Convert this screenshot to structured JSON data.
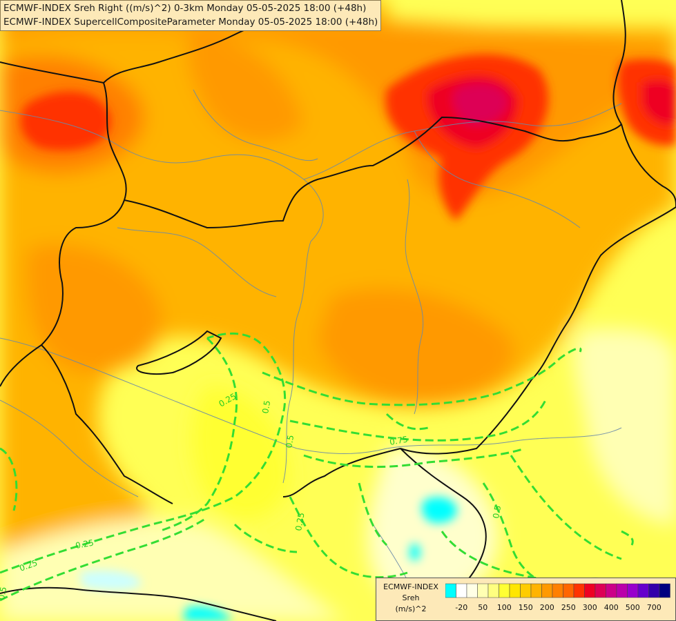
{
  "titles": {
    "line1": "ECMWF-INDEX Sreh Right ((m/s)^2) 0-3km Monday 05-05-2025 18:00 (+48h)",
    "line2": "ECMWF-INDEX SupercellCompositeParameter Monday 05-05-2025 18:00 (+48h)"
  },
  "legend": {
    "title": "ECMWF-INDEX",
    "variable": "Sreh",
    "unit": "(m/s)^2",
    "colors": [
      "#00ffff",
      "#ffffff",
      "#ffffe6",
      "#ffffb3",
      "#ffff80",
      "#ffff33",
      "#ffe600",
      "#ffcc00",
      "#ffb300",
      "#ff9900",
      "#ff8000",
      "#ff6600",
      "#ff3300",
      "#ee0022",
      "#dd0055",
      "#cc0088",
      "#bb00aa",
      "#9900cc",
      "#6600cc",
      "#3300aa",
      "#000080"
    ],
    "tick_labels": [
      "-20",
      "50",
      "100",
      "150",
      "200",
      "250",
      "300",
      "400",
      "500",
      "700"
    ]
  },
  "contours": {
    "color": "#33dd33",
    "labels": [
      "0.25",
      "0.5",
      "0.75",
      "0.5",
      "0.25",
      "0.25",
      "0.5",
      "0.25",
      "0.5",
      "0.75",
      "0.25",
      "0.5",
      "0.25"
    ]
  }
}
